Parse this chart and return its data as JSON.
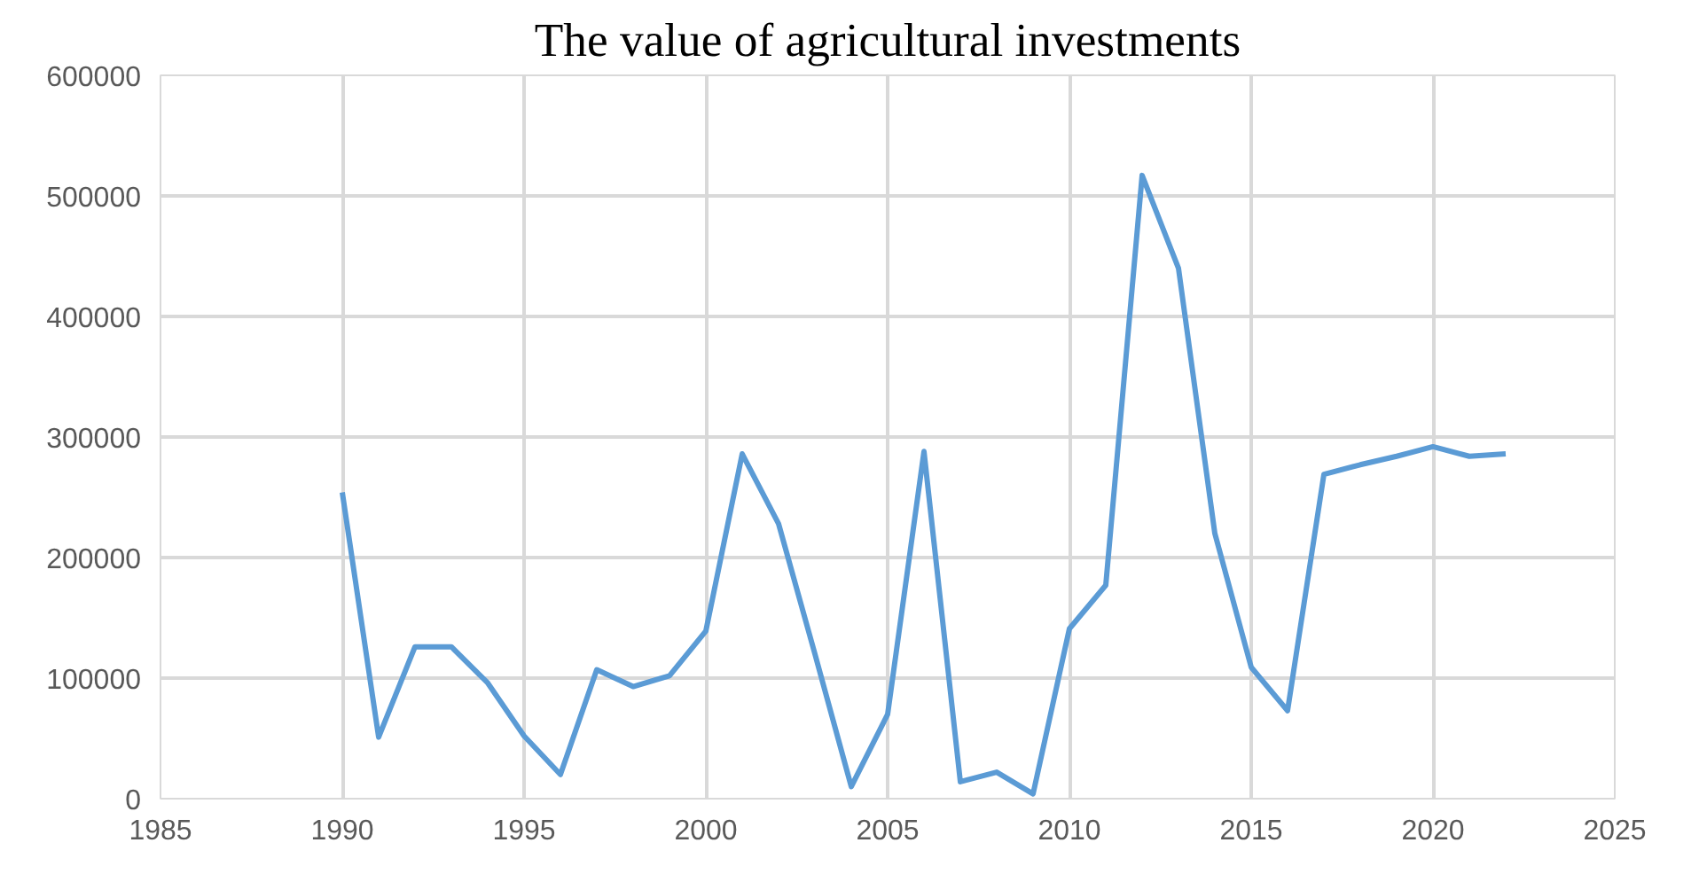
{
  "chart_data": {
    "type": "line",
    "title": "The value of agricultural investments",
    "x": [
      1990,
      1991,
      1992,
      1993,
      1994,
      1995,
      1996,
      1997,
      1998,
      1999,
      2000,
      2001,
      2002,
      2003,
      2004,
      2005,
      2006,
      2007,
      2008,
      2009,
      2010,
      2011,
      2012,
      2013,
      2014,
      2015,
      2016,
      2017,
      2018,
      2019,
      2020,
      2021,
      2022
    ],
    "series": [
      {
        "color": "#5b9bd5",
        "values": [
          254000,
          51000,
          126000,
          126000,
          96000,
          52000,
          20000,
          107000,
          93000,
          102000,
          139000,
          286000,
          228000,
          120000,
          10000,
          70000,
          288000,
          14000,
          22000,
          4000,
          141000,
          177000,
          517000,
          440000,
          220000,
          109000,
          73000,
          269000,
          277000,
          284000,
          292000,
          284000,
          286000
        ]
      }
    ],
    "xlim": [
      1985,
      2025
    ],
    "xticks": [
      1985,
      1990,
      1995,
      2000,
      2005,
      2010,
      2015,
      2020,
      2025
    ],
    "ylim": [
      0,
      600000
    ],
    "yticks": [
      0,
      100000,
      200000,
      300000,
      400000,
      500000,
      600000
    ],
    "grid": true,
    "marker": "none",
    "line_style": "solid"
  }
}
